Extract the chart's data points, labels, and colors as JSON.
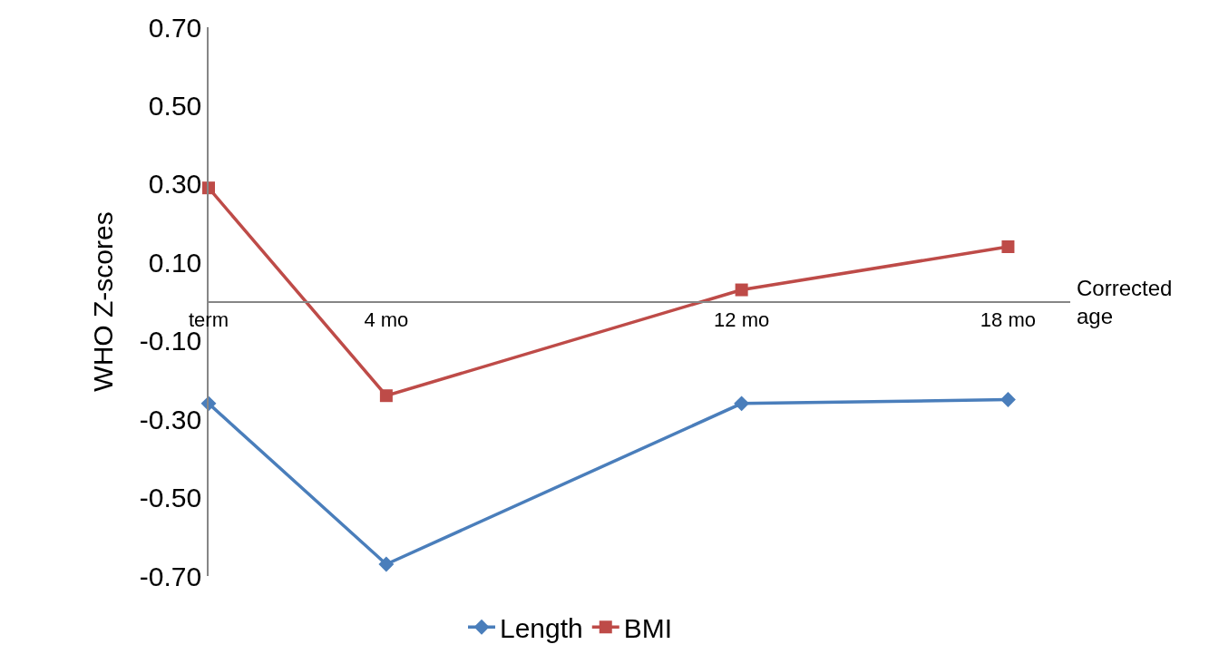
{
  "chart_data": {
    "type": "line",
    "ylabel": "WHO Z-scores",
    "xlabel": "Corrected age",
    "x": [
      0,
      4,
      12,
      18
    ],
    "series": [
      {
        "name": "Length",
        "color": "#4a7ebb",
        "marker": "diamond",
        "values": [
          -0.26,
          -0.67,
          -0.26,
          -0.25
        ]
      },
      {
        "name": "BMI",
        "color": "#be4b48",
        "marker": "square",
        "values": [
          0.29,
          -0.24,
          0.03,
          0.14
        ]
      }
    ],
    "xlim": [
      0,
      19.4
    ],
    "xticks": [
      {
        "value": 0,
        "label": "term"
      },
      {
        "value": 4,
        "label": "4 mo"
      },
      {
        "value": 12,
        "label": "12 mo"
      },
      {
        "value": 18,
        "label": "18 mo"
      }
    ],
    "ylim": [
      -0.7,
      0.7
    ],
    "yticks": [
      {
        "value": -0.7,
        "label": "-0.70"
      },
      {
        "value": -0.5,
        "label": "-0.50"
      },
      {
        "value": -0.3,
        "label": "-0.30"
      },
      {
        "value": -0.1,
        "label": "-0.10"
      },
      {
        "value": 0.1,
        "label": "0.10"
      },
      {
        "value": 0.3,
        "label": "0.30"
      },
      {
        "value": 0.5,
        "label": "0.50"
      },
      {
        "value": 0.7,
        "label": "0.70"
      }
    ],
    "legend": "bottom",
    "line_style": "solid"
  }
}
